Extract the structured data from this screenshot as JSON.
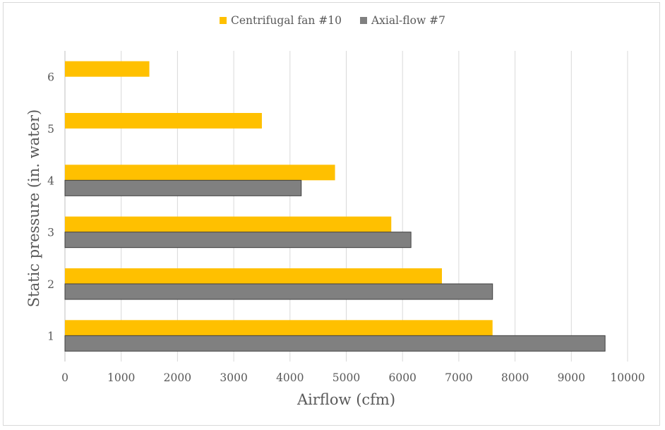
{
  "chart_data": {
    "type": "bar",
    "orientation": "horizontal",
    "categories": [
      "1",
      "2",
      "3",
      "4",
      "5",
      "6"
    ],
    "series": [
      {
        "name": "Centrifugal fan #10",
        "color": "#FFC000",
        "values": [
          7600,
          6700,
          5800,
          4800,
          3500,
          1500
        ]
      },
      {
        "name": "Axial-flow #7",
        "color": "#808080",
        "values": [
          9600,
          7600,
          6150,
          4200,
          null,
          null
        ]
      }
    ],
    "xlabel": "Airflow (cfm)",
    "ylabel": "Static pressure (in. water)",
    "xlim": [
      0,
      10000
    ],
    "xticks": [
      "0",
      "1000",
      "2000",
      "3000",
      "4000",
      "5000",
      "6000",
      "7000",
      "8000",
      "9000",
      "10000"
    ],
    "grid": true,
    "legend_position": "top"
  }
}
